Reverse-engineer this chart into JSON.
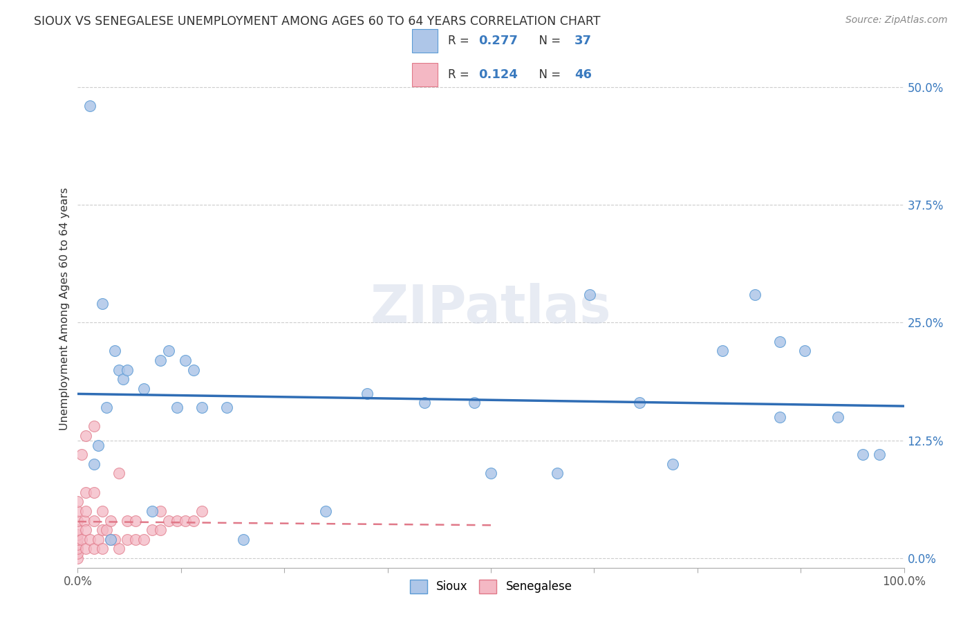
{
  "title": "SIOUX VS SENEGALESE UNEMPLOYMENT AMONG AGES 60 TO 64 YEARS CORRELATION CHART",
  "source": "Source: ZipAtlas.com",
  "ylabel": "Unemployment Among Ages 60 to 64 years",
  "xlim": [
    0,
    1.0
  ],
  "ylim": [
    -0.01,
    0.54
  ],
  "yticks": [
    0.0,
    0.125,
    0.25,
    0.375,
    0.5
  ],
  "yticklabels_right": [
    "0.0%",
    "12.5%",
    "25.0%",
    "37.5%",
    "50.0%"
  ],
  "xticks": [
    0.0,
    0.125,
    0.25,
    0.375,
    0.5,
    0.625,
    0.75,
    0.875,
    1.0
  ],
  "sioux_color": "#aec6e8",
  "sioux_edge_color": "#5b9bd5",
  "senegalese_color": "#f4b8c4",
  "senegalese_edge_color": "#e07888",
  "trend_blue": "#2f6db5",
  "trend_pink": "#e07888",
  "legend_text_color": "#3a7abf",
  "watermark": "ZIPatlas",
  "sioux_x": [
    0.02,
    0.03,
    0.025,
    0.015,
    0.04,
    0.035,
    0.05,
    0.045,
    0.055,
    0.06,
    0.08,
    0.09,
    0.1,
    0.11,
    0.12,
    0.13,
    0.14,
    0.15,
    0.18,
    0.2,
    0.3,
    0.35,
    0.42,
    0.48,
    0.5,
    0.58,
    0.62,
    0.68,
    0.72,
    0.78,
    0.82,
    0.85,
    0.88,
    0.92,
    0.85,
    0.95,
    0.97
  ],
  "sioux_y": [
    0.1,
    0.27,
    0.12,
    0.48,
    0.02,
    0.16,
    0.2,
    0.22,
    0.19,
    0.2,
    0.18,
    0.05,
    0.21,
    0.22,
    0.16,
    0.21,
    0.2,
    0.16,
    0.16,
    0.02,
    0.05,
    0.175,
    0.165,
    0.165,
    0.09,
    0.09,
    0.28,
    0.165,
    0.1,
    0.22,
    0.28,
    0.15,
    0.22,
    0.15,
    0.23,
    0.11,
    0.11
  ],
  "senegalese_x": [
    0.0,
    0.0,
    0.0,
    0.0,
    0.0,
    0.0,
    0.0,
    0.0,
    0.0,
    0.0,
    0.005,
    0.005,
    0.008,
    0.01,
    0.01,
    0.01,
    0.01,
    0.01,
    0.015,
    0.02,
    0.02,
    0.02,
    0.02,
    0.025,
    0.03,
    0.03,
    0.03,
    0.035,
    0.04,
    0.04,
    0.045,
    0.05,
    0.05,
    0.06,
    0.06,
    0.07,
    0.07,
    0.08,
    0.09,
    0.1,
    0.1,
    0.11,
    0.12,
    0.13,
    0.14,
    0.15
  ],
  "senegalese_y": [
    0.0,
    0.005,
    0.01,
    0.015,
    0.02,
    0.025,
    0.03,
    0.04,
    0.05,
    0.06,
    0.02,
    0.11,
    0.04,
    0.01,
    0.03,
    0.05,
    0.07,
    0.13,
    0.02,
    0.01,
    0.04,
    0.07,
    0.14,
    0.02,
    0.01,
    0.03,
    0.05,
    0.03,
    0.02,
    0.04,
    0.02,
    0.01,
    0.09,
    0.02,
    0.04,
    0.02,
    0.04,
    0.02,
    0.03,
    0.03,
    0.05,
    0.04,
    0.04,
    0.04,
    0.04,
    0.05
  ],
  "sioux_R": 0.277,
  "sioux_N": 37,
  "senegalese_R": 0.124,
  "senegalese_N": 46
}
